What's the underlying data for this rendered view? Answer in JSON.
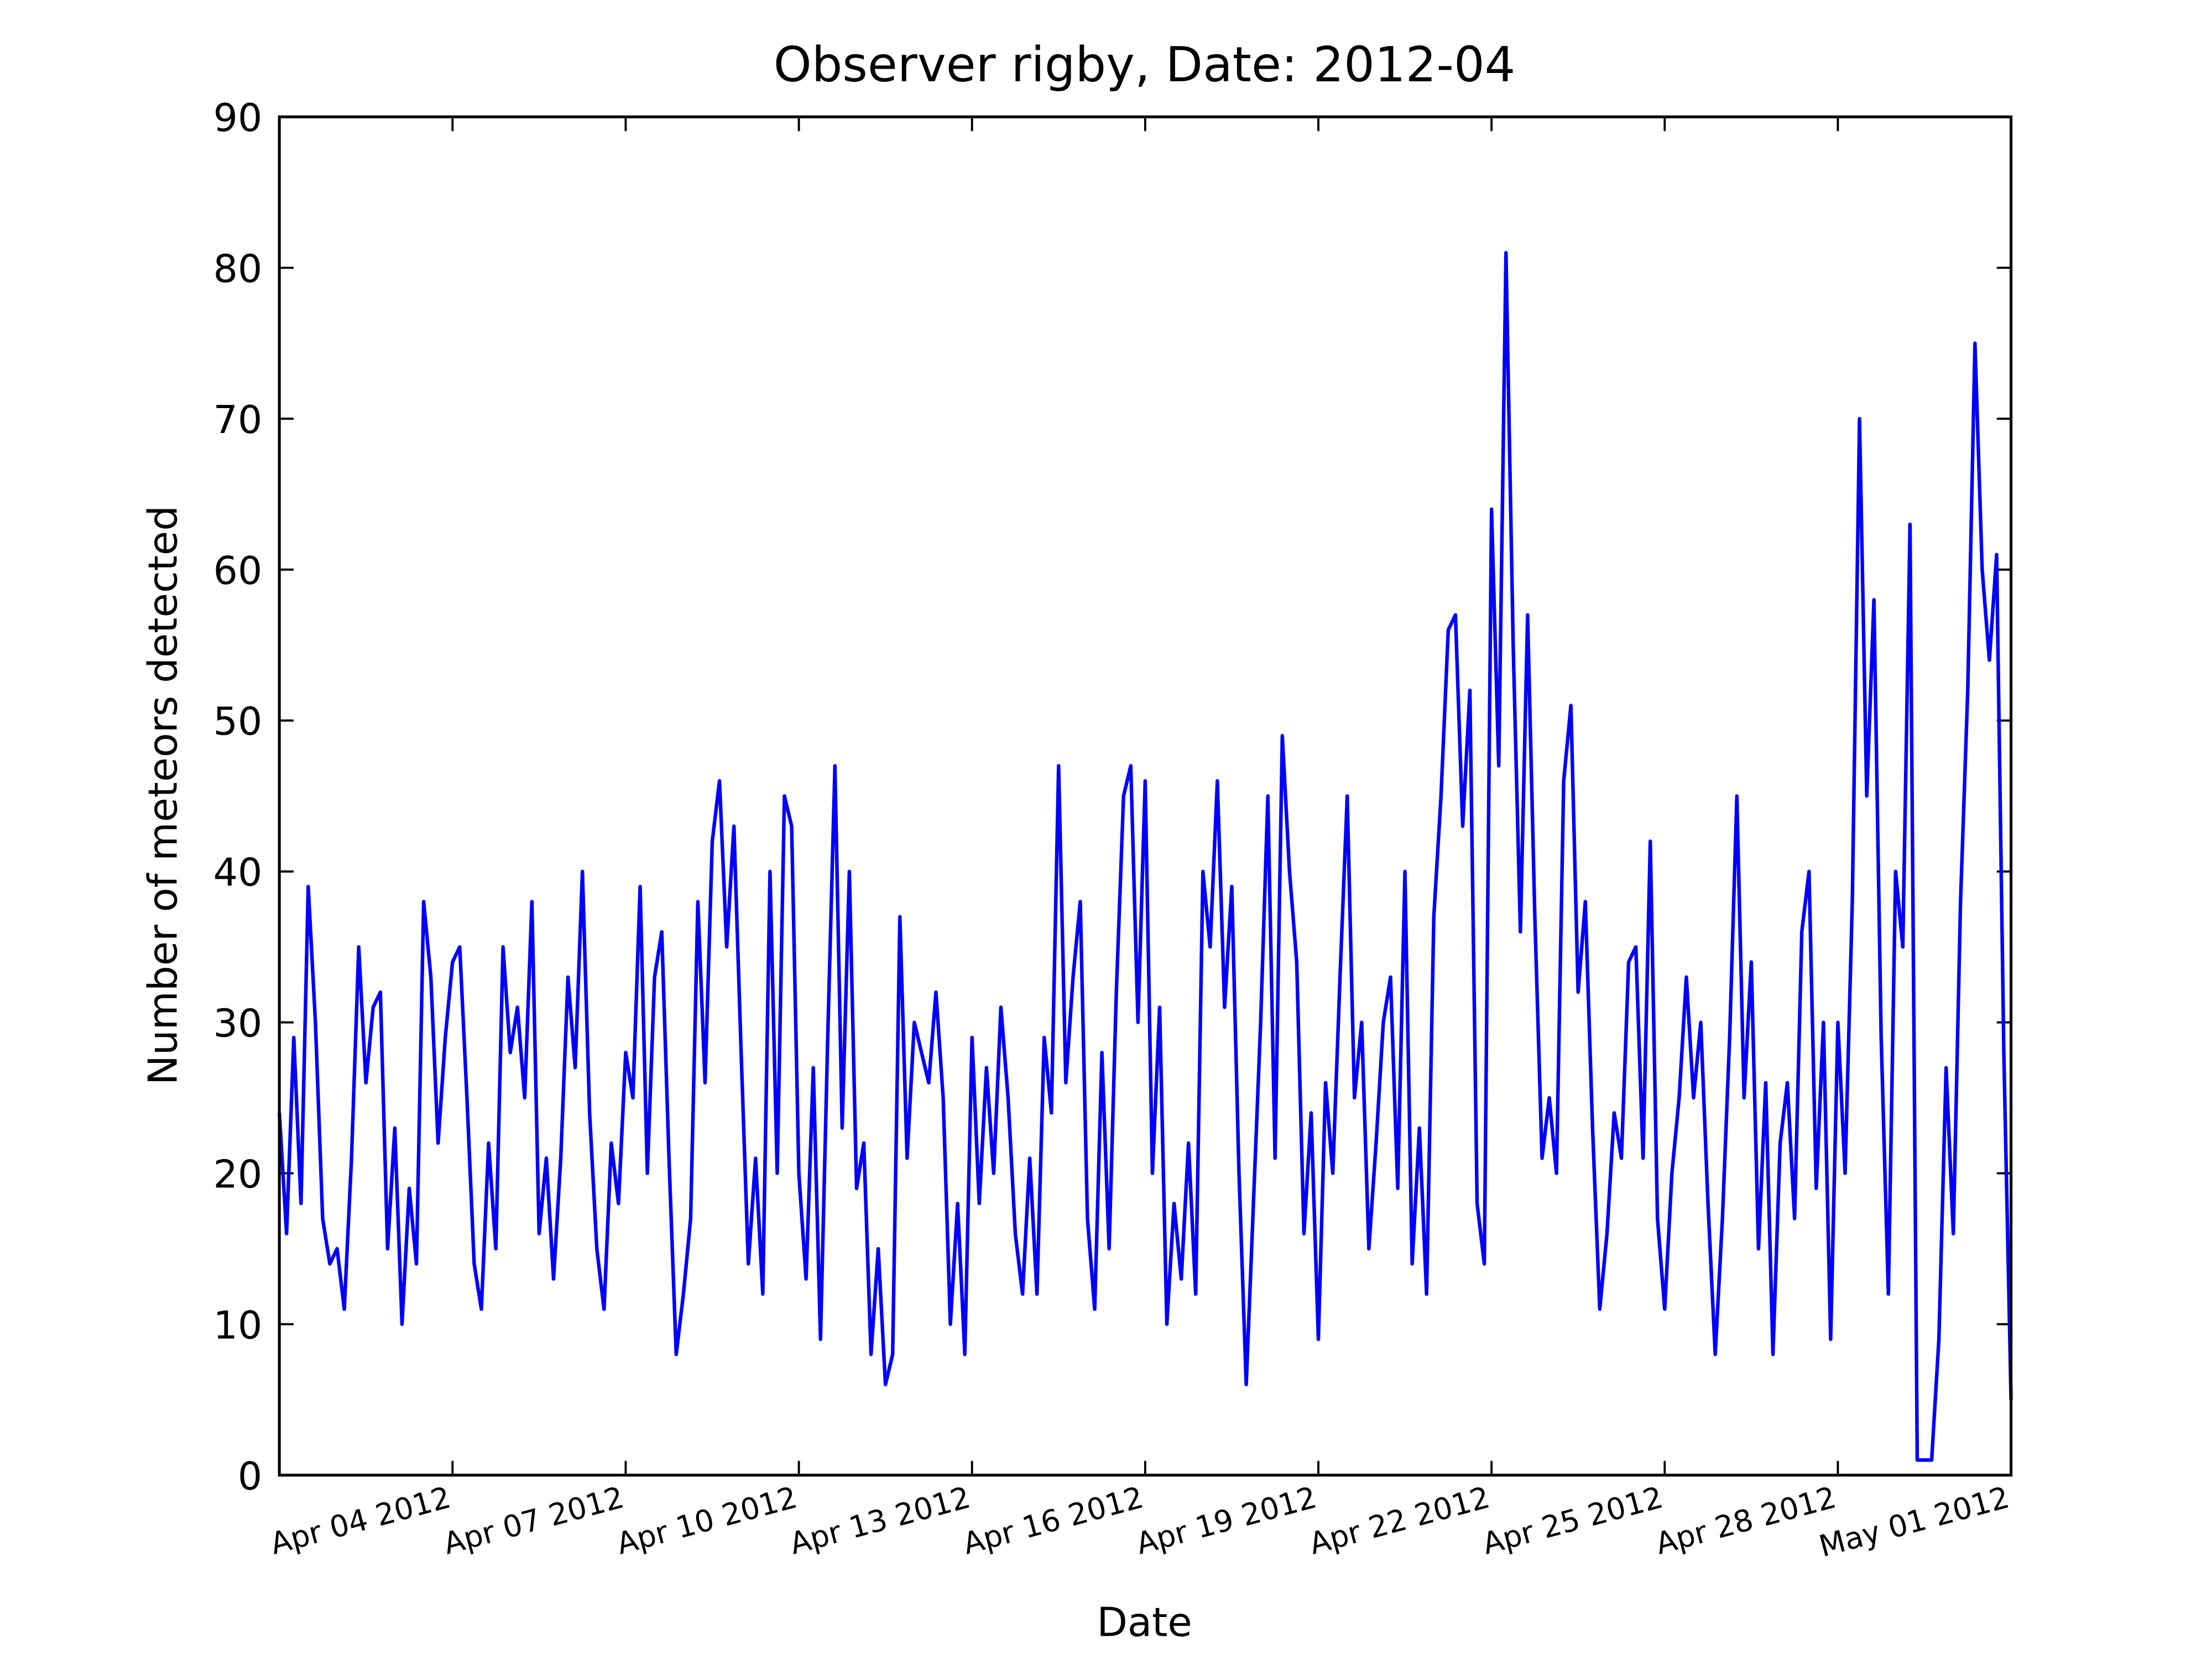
{
  "chart_data": {
    "type": "line",
    "title": "Observer rigby, Date: 2012-04",
    "x_label": "Date",
    "y_label": "Number of meteors detected",
    "xlim": [
      "2012-04-01 00:00",
      "2012-05-01 00:00"
    ],
    "xticks": [
      {
        "value": "2012-04-04",
        "label": "Apr 04 2012"
      },
      {
        "value": "2012-04-07",
        "label": "Apr 07 2012"
      },
      {
        "value": "2012-04-10",
        "label": "Apr 10 2012"
      },
      {
        "value": "2012-04-13",
        "label": "Apr 13 2012"
      },
      {
        "value": "2012-04-16",
        "label": "Apr 16 2012"
      },
      {
        "value": "2012-04-19",
        "label": "Apr 19 2012"
      },
      {
        "value": "2012-04-22",
        "label": "Apr 22 2012"
      },
      {
        "value": "2012-04-25",
        "label": "Apr 25 2012"
      },
      {
        "value": "2012-04-28",
        "label": "Apr 28 2012"
      },
      {
        "value": "2012-05-01",
        "label": "May 01 2012"
      }
    ],
    "ylim": [
      0,
      90
    ],
    "yticks": [
      0,
      10,
      20,
      30,
      40,
      50,
      60,
      70,
      80,
      90
    ],
    "grid": false,
    "color": "#0000ff",
    "x": [
      "2012-04-01 00:00",
      "2012-04-01 03:00",
      "2012-04-01 06:00",
      "2012-04-01 09:00",
      "2012-04-01 12:00",
      "2012-04-01 15:00",
      "2012-04-01 18:00",
      "2012-04-01 21:00",
      "2012-04-02 00:00",
      "2012-04-02 03:00",
      "2012-04-02 06:00",
      "2012-04-02 09:00",
      "2012-04-02 12:00",
      "2012-04-02 15:00",
      "2012-04-02 18:00",
      "2012-04-02 21:00",
      "2012-04-03 00:00",
      "2012-04-03 03:00",
      "2012-04-03 06:00",
      "2012-04-03 09:00",
      "2012-04-03 12:00",
      "2012-04-03 15:00",
      "2012-04-03 18:00",
      "2012-04-03 21:00",
      "2012-04-04 00:00",
      "2012-04-04 03:00",
      "2012-04-04 06:00",
      "2012-04-04 09:00",
      "2012-04-04 12:00",
      "2012-04-04 15:00",
      "2012-04-04 18:00",
      "2012-04-04 21:00",
      "2012-04-05 00:00",
      "2012-04-05 03:00",
      "2012-04-05 06:00",
      "2012-04-05 09:00",
      "2012-04-05 12:00",
      "2012-04-05 15:00",
      "2012-04-05 18:00",
      "2012-04-05 21:00",
      "2012-04-06 00:00",
      "2012-04-06 03:00",
      "2012-04-06 06:00",
      "2012-04-06 09:00",
      "2012-04-06 12:00",
      "2012-04-06 15:00",
      "2012-04-06 18:00",
      "2012-04-06 21:00",
      "2012-04-07 00:00",
      "2012-04-07 03:00",
      "2012-04-07 06:00",
      "2012-04-07 09:00",
      "2012-04-07 12:00",
      "2012-04-07 15:00",
      "2012-04-07 18:00",
      "2012-04-07 21:00",
      "2012-04-08 00:00",
      "2012-04-08 03:00",
      "2012-04-08 06:00",
      "2012-04-08 09:00",
      "2012-04-08 12:00",
      "2012-04-08 15:00",
      "2012-04-08 18:00",
      "2012-04-08 21:00",
      "2012-04-09 00:00",
      "2012-04-09 03:00",
      "2012-04-09 06:00",
      "2012-04-09 09:00",
      "2012-04-09 12:00",
      "2012-04-09 15:00",
      "2012-04-09 18:00",
      "2012-04-09 21:00",
      "2012-04-10 00:00",
      "2012-04-10 03:00",
      "2012-04-10 06:00",
      "2012-04-10 09:00",
      "2012-04-10 12:00",
      "2012-04-10 15:00",
      "2012-04-10 18:00",
      "2012-04-10 21:00",
      "2012-04-11 00:00",
      "2012-04-11 03:00",
      "2012-04-11 06:00",
      "2012-04-11 09:00",
      "2012-04-11 12:00",
      "2012-04-11 15:00",
      "2012-04-11 18:00",
      "2012-04-11 21:00",
      "2012-04-12 00:00",
      "2012-04-12 03:00",
      "2012-04-12 06:00",
      "2012-04-12 09:00",
      "2012-04-12 12:00",
      "2012-04-12 15:00",
      "2012-04-12 18:00",
      "2012-04-12 21:00",
      "2012-04-13 00:00",
      "2012-04-13 03:00",
      "2012-04-13 06:00",
      "2012-04-13 09:00",
      "2012-04-13 12:00",
      "2012-04-13 15:00",
      "2012-04-13 18:00",
      "2012-04-13 21:00",
      "2012-04-14 00:00",
      "2012-04-14 03:00",
      "2012-04-14 06:00",
      "2012-04-14 09:00",
      "2012-04-14 12:00",
      "2012-04-14 15:00",
      "2012-04-14 18:00",
      "2012-04-14 21:00",
      "2012-04-15 00:00",
      "2012-04-15 03:00",
      "2012-04-15 06:00",
      "2012-04-15 09:00",
      "2012-04-15 12:00",
      "2012-04-15 15:00",
      "2012-04-15 18:00",
      "2012-04-15 21:00",
      "2012-04-16 00:00",
      "2012-04-16 03:00",
      "2012-04-16 06:00",
      "2012-04-16 09:00",
      "2012-04-16 12:00",
      "2012-04-16 15:00",
      "2012-04-16 18:00",
      "2012-04-16 21:00",
      "2012-04-17 00:00",
      "2012-04-17 03:00",
      "2012-04-17 06:00",
      "2012-04-17 09:00",
      "2012-04-17 12:00",
      "2012-04-17 15:00",
      "2012-04-17 18:00",
      "2012-04-17 21:00",
      "2012-04-18 00:00",
      "2012-04-18 03:00",
      "2012-04-18 06:00",
      "2012-04-18 09:00",
      "2012-04-18 12:00",
      "2012-04-18 15:00",
      "2012-04-18 18:00",
      "2012-04-18 21:00",
      "2012-04-19 00:00",
      "2012-04-19 03:00",
      "2012-04-19 06:00",
      "2012-04-19 09:00",
      "2012-04-19 12:00",
      "2012-04-19 15:00",
      "2012-04-19 18:00",
      "2012-04-19 21:00",
      "2012-04-20 00:00",
      "2012-04-20 03:00",
      "2012-04-20 06:00",
      "2012-04-20 09:00",
      "2012-04-20 12:00",
      "2012-04-20 15:00",
      "2012-04-20 18:00",
      "2012-04-20 21:00",
      "2012-04-21 00:00",
      "2012-04-21 03:00",
      "2012-04-21 06:00",
      "2012-04-21 09:00",
      "2012-04-21 12:00",
      "2012-04-21 15:00",
      "2012-04-21 18:00",
      "2012-04-21 21:00",
      "2012-04-22 00:00",
      "2012-04-22 03:00",
      "2012-04-22 06:00",
      "2012-04-22 09:00",
      "2012-04-22 12:00",
      "2012-04-22 15:00",
      "2012-04-22 18:00",
      "2012-04-22 21:00",
      "2012-04-23 00:00",
      "2012-04-23 03:00",
      "2012-04-23 06:00",
      "2012-04-23 09:00",
      "2012-04-23 12:00",
      "2012-04-23 15:00",
      "2012-04-23 18:00",
      "2012-04-23 21:00",
      "2012-04-24 00:00",
      "2012-04-24 03:00",
      "2012-04-24 06:00",
      "2012-04-24 09:00",
      "2012-04-24 12:00",
      "2012-04-24 15:00",
      "2012-04-24 18:00",
      "2012-04-24 21:00",
      "2012-04-25 00:00",
      "2012-04-25 03:00",
      "2012-04-25 06:00",
      "2012-04-25 09:00",
      "2012-04-25 12:00",
      "2012-04-25 15:00",
      "2012-04-25 18:00",
      "2012-04-25 21:00",
      "2012-04-26 00:00",
      "2012-04-26 03:00",
      "2012-04-26 06:00",
      "2012-04-26 09:00",
      "2012-04-26 12:00",
      "2012-04-26 15:00",
      "2012-04-26 18:00",
      "2012-04-26 21:00",
      "2012-04-27 00:00",
      "2012-04-27 03:00",
      "2012-04-27 06:00",
      "2012-04-27 09:00",
      "2012-04-27 12:00",
      "2012-04-27 15:00",
      "2012-04-27 18:00",
      "2012-04-27 21:00",
      "2012-04-28 00:00",
      "2012-04-28 03:00",
      "2012-04-28 06:00",
      "2012-04-28 09:00",
      "2012-04-28 12:00",
      "2012-04-28 15:00",
      "2012-04-28 18:00",
      "2012-04-28 21:00",
      "2012-04-29 00:00",
      "2012-04-29 03:00",
      "2012-04-29 06:00",
      "2012-04-29 09:00",
      "2012-04-29 12:00",
      "2012-04-29 15:00",
      "2012-04-29 18:00",
      "2012-04-29 21:00",
      "2012-04-30 00:00",
      "2012-04-30 03:00",
      "2012-04-30 06:00",
      "2012-04-30 09:00",
      "2012-04-30 12:00",
      "2012-04-30 15:00",
      "2012-04-30 18:00",
      "2012-04-30 21:00",
      "2012-05-01 00:00"
    ],
    "values": [
      24,
      16,
      29,
      18,
      39,
      30,
      17,
      14,
      15,
      11,
      21,
      35,
      26,
      31,
      32,
      15,
      23,
      10,
      19,
      14,
      38,
      33,
      22,
      29,
      34,
      35,
      25,
      14,
      11,
      22,
      15,
      35,
      28,
      31,
      25,
      38,
      16,
      21,
      13,
      21,
      33,
      27,
      40,
      24,
      15,
      11,
      22,
      18,
      28,
      25,
      39,
      20,
      33,
      36,
      21,
      8,
      12,
      17,
      38,
      26,
      42,
      46,
      35,
      43,
      28,
      14,
      21,
      12,
      40,
      20,
      45,
      43,
      20,
      13,
      27,
      9,
      29,
      47,
      23,
      40,
      19,
      22,
      8,
      15,
      6,
      8,
      37,
      21,
      30,
      28,
      26,
      32,
      25,
      10,
      18,
      8,
      29,
      18,
      27,
      20,
      31,
      25,
      16,
      12,
      21,
      12,
      29,
      24,
      47,
      26,
      33,
      38,
      17,
      11,
      28,
      15,
      32,
      45,
      47,
      30,
      46,
      20,
      31,
      10,
      18,
      13,
      22,
      12,
      40,
      35,
      46,
      31,
      39,
      20,
      6,
      18,
      30,
      45,
      21,
      49,
      40,
      34,
      16,
      24,
      9,
      26,
      20,
      33,
      45,
      25,
      30,
      15,
      22,
      30,
      33,
      19,
      40,
      14,
      23,
      12,
      37,
      45,
      56,
      57,
      43,
      52,
      18,
      14,
      64,
      47,
      81,
      55,
      36,
      57,
      37,
      21,
      25,
      20,
      46,
      51,
      32,
      38,
      23,
      11,
      16,
      24,
      21,
      34,
      35,
      21,
      42,
      17,
      11,
      20,
      25,
      33,
      25,
      30,
      18,
      8,
      17,
      29,
      45,
      25,
      34,
      15,
      26,
      8,
      22,
      26,
      17,
      36,
      40,
      19,
      30,
      9,
      30,
      20,
      38,
      70,
      45,
      58,
      29,
      12,
      40,
      35,
      63,
      1,
      1,
      1,
      9,
      27,
      16,
      38,
      52,
      75,
      60,
      54,
      61,
      28,
      5
    ]
  }
}
